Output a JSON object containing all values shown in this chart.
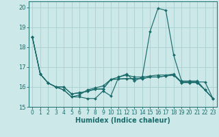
{
  "xlabel": "Humidex (Indice chaleur)",
  "xlim": [
    -0.5,
    23.5
  ],
  "ylim": [
    15.0,
    20.3
  ],
  "yticks": [
    15,
    16,
    17,
    18,
    19,
    20
  ],
  "xticks": [
    0,
    1,
    2,
    3,
    4,
    5,
    6,
    7,
    8,
    9,
    10,
    11,
    12,
    13,
    14,
    15,
    16,
    17,
    18,
    19,
    20,
    21,
    22,
    23
  ],
  "bg_color": "#cde8e8",
  "grid_color": "#aad0d0",
  "line_color": "#1a6b6b",
  "lines": [
    {
      "x": [
        0,
        1,
        2,
        3,
        4,
        5,
        6,
        7,
        8,
        9,
        10,
        11,
        12,
        13,
        14,
        15,
        16,
        17,
        18,
        19,
        20,
        21,
        22,
        23
      ],
      "y": [
        18.5,
        16.65,
        16.2,
        16.0,
        15.85,
        15.5,
        15.5,
        15.42,
        15.42,
        15.8,
        15.55,
        16.5,
        16.65,
        16.3,
        16.5,
        18.8,
        19.95,
        19.85,
        17.6,
        16.3,
        16.3,
        16.3,
        15.85,
        15.42
      ]
    },
    {
      "x": [
        0,
        1,
        2,
        3,
        4,
        5,
        6,
        7,
        8,
        9,
        10,
        11,
        12,
        13,
        14,
        15,
        16,
        17,
        18,
        19,
        20,
        21,
        22,
        23
      ],
      "y": [
        18.5,
        16.65,
        16.2,
        16.0,
        15.85,
        15.5,
        15.6,
        15.85,
        15.95,
        16.05,
        16.38,
        16.5,
        16.6,
        16.5,
        16.5,
        16.55,
        16.6,
        16.6,
        16.65,
        16.25,
        16.25,
        16.25,
        16.25,
        15.42
      ]
    },
    {
      "x": [
        0,
        1,
        2,
        3,
        4,
        5,
        6,
        7,
        8,
        9,
        10,
        11,
        12,
        13,
        14,
        15,
        16,
        17,
        18,
        19,
        20,
        21,
        22,
        23
      ],
      "y": [
        18.5,
        16.65,
        16.2,
        16.0,
        16.0,
        15.65,
        15.7,
        15.78,
        15.88,
        15.9,
        16.38,
        16.4,
        16.42,
        16.42,
        16.42,
        16.5,
        16.5,
        16.55,
        16.6,
        16.22,
        16.22,
        16.22,
        15.85,
        15.42
      ]
    },
    {
      "x": [
        0,
        1,
        2,
        3,
        4,
        5,
        6,
        7,
        8,
        9,
        10,
        11,
        12,
        13,
        14,
        15,
        16,
        17,
        18,
        19,
        20,
        21,
        22,
        23
      ],
      "y": [
        18.5,
        16.65,
        16.2,
        16.0,
        16.0,
        15.65,
        15.72,
        15.78,
        15.9,
        15.9,
        16.38,
        16.4,
        16.42,
        16.42,
        16.42,
        16.5,
        16.5,
        16.55,
        16.6,
        16.22,
        16.22,
        16.22,
        15.85,
        15.42
      ]
    }
  ]
}
